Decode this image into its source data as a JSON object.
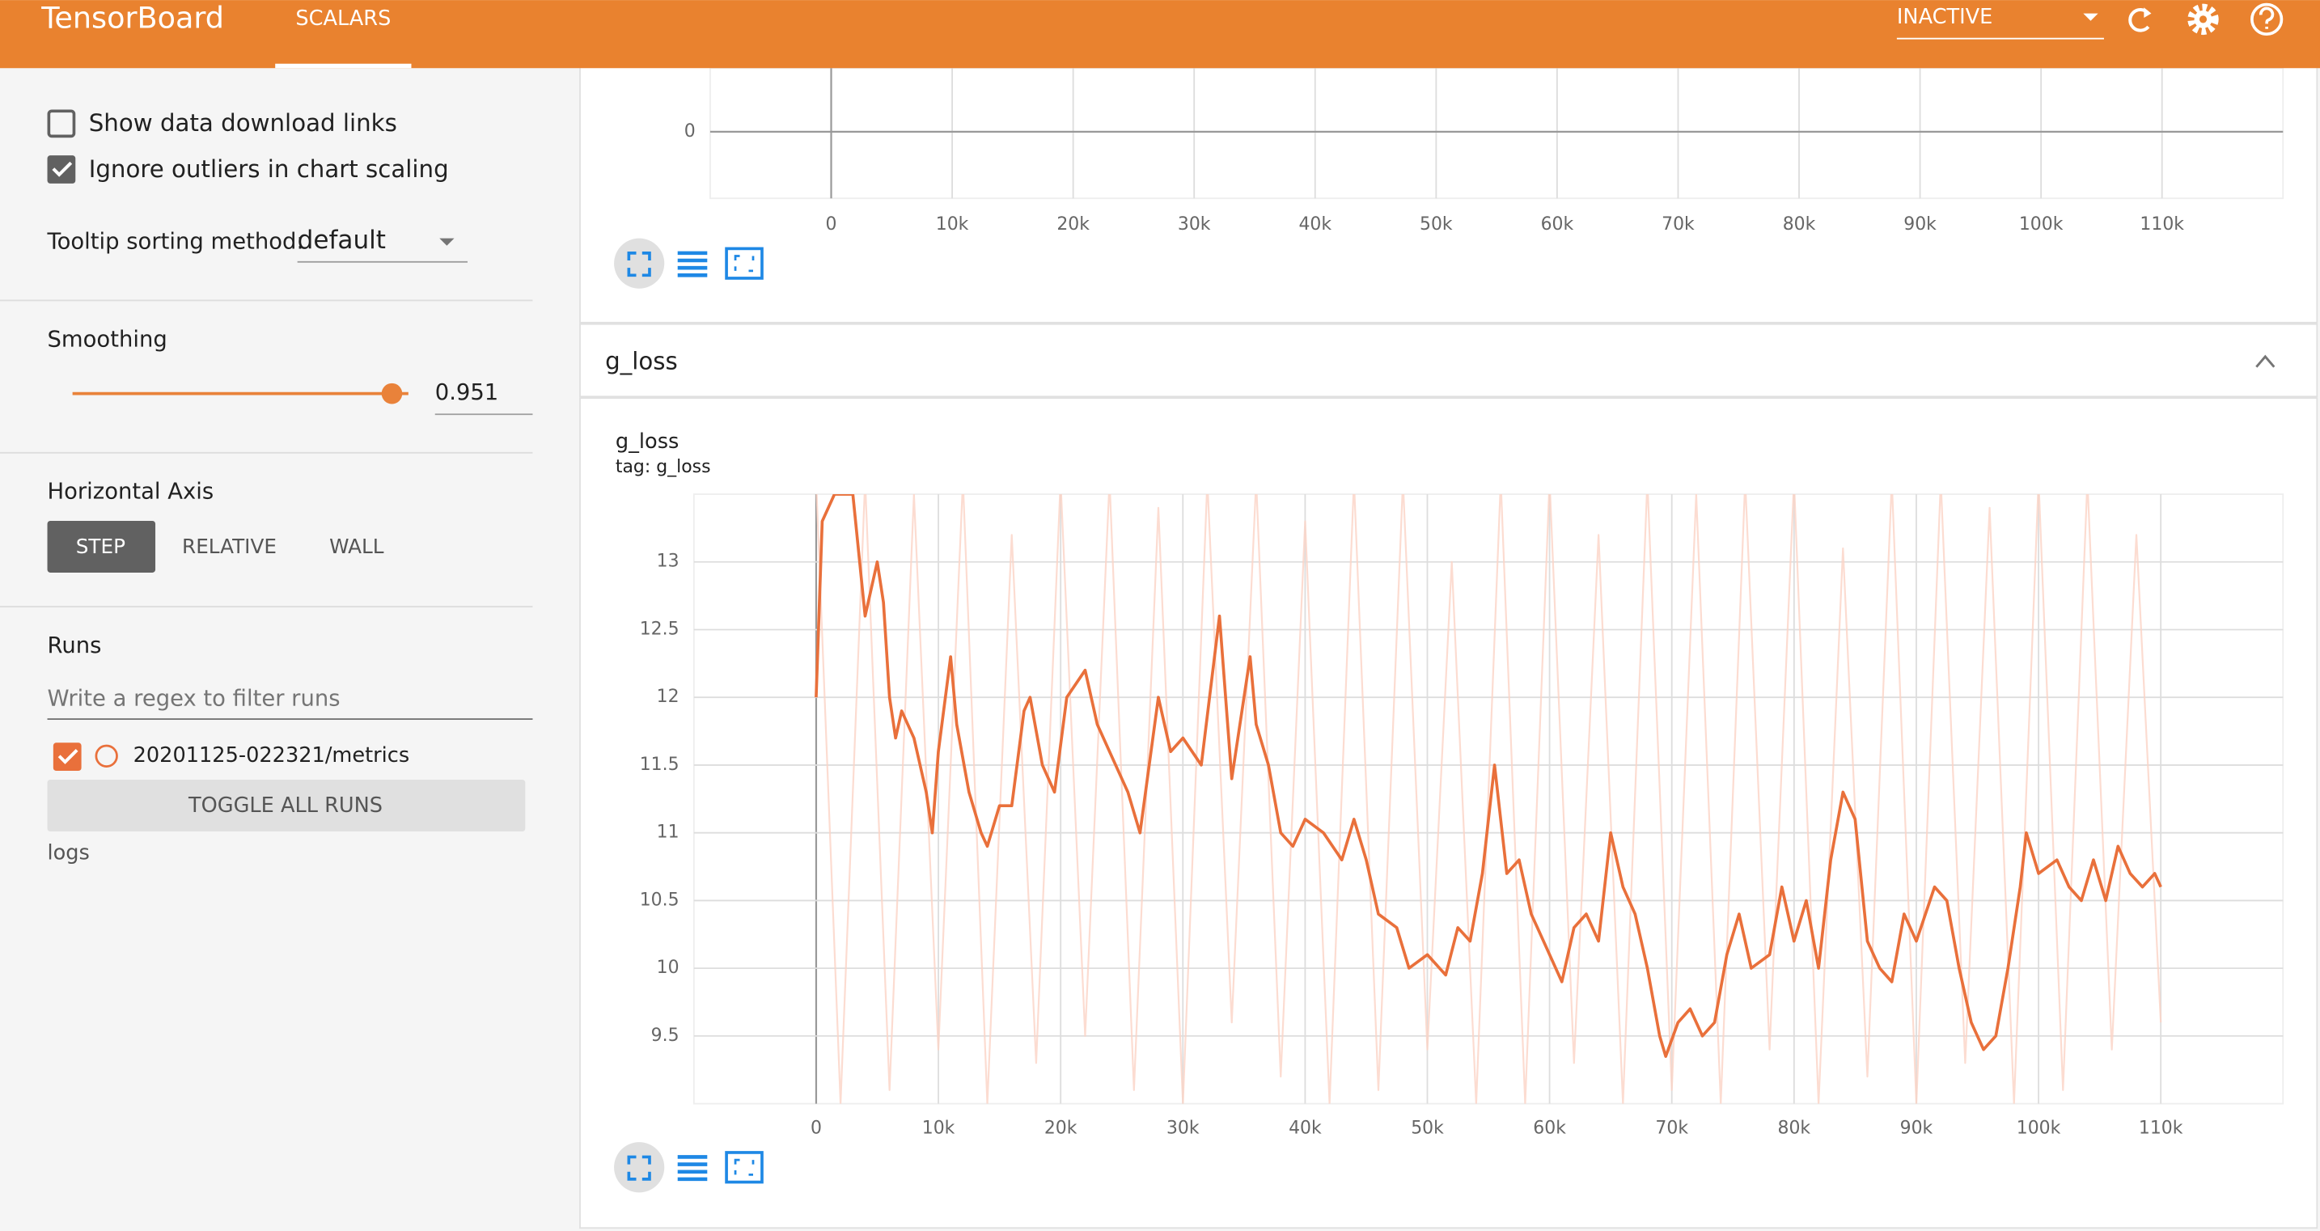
{
  "header": {
    "title": "TensorBoard",
    "tab": "SCALARS",
    "status": "INACTIVE"
  },
  "sidebar": {
    "show_download": "Show data download links",
    "ignore_outliers": "Ignore outliers in chart scaling",
    "tooltip_label": "Tooltip sorting method:",
    "tooltip_value": "default",
    "smoothing_label": "Smoothing",
    "smoothing_value": 0.951,
    "axis_label": "Horizontal Axis",
    "axis_options": [
      "STEP",
      "RELATIVE",
      "WALL"
    ],
    "runs_label": "Runs",
    "filter_placeholder": "Write a regex to filter runs",
    "run": "20201125-022321/metrics",
    "toggle": "TOGGLE ALL RUNS",
    "logdir": "logs"
  },
  "section": "g_loss",
  "chart_data": [
    {
      "type": "line",
      "xlim": [
        -10000,
        120000
      ],
      "xticks": [
        0,
        {
          "value": 10000,
          "label": "10k"
        },
        {
          "value": 20000,
          "label": "20k"
        },
        {
          "value": 30000,
          "label": "30k"
        },
        {
          "value": 40000,
          "label": "40k"
        },
        {
          "value": 50000,
          "label": "50k"
        },
        {
          "value": 60000,
          "label": "60k"
        },
        {
          "value": 70000,
          "label": "70k"
        },
        {
          "value": 80000,
          "label": "80k"
        },
        {
          "value": 90000,
          "label": "90k"
        },
        {
          "value": 100000,
          "label": "100k"
        },
        {
          "value": 110000,
          "label": "110k"
        }
      ],
      "ylim": [
        -0.05,
        0.1
      ],
      "yticks": [
        0
      ],
      "grid": true
    },
    {
      "type": "line",
      "title": "g_loss",
      "subtitle": "tag: g_loss",
      "xlim": [
        -10000,
        120000
      ],
      "xticks": [
        0,
        {
          "value": 10000,
          "label": "10k"
        },
        {
          "value": 20000,
          "label": "20k"
        },
        {
          "value": 30000,
          "label": "30k"
        },
        {
          "value": 40000,
          "label": "40k"
        },
        {
          "value": 50000,
          "label": "50k"
        },
        {
          "value": 60000,
          "label": "60k"
        },
        {
          "value": 70000,
          "label": "70k"
        },
        {
          "value": 80000,
          "label": "80k"
        },
        {
          "value": 90000,
          "label": "90k"
        },
        {
          "value": 100000,
          "label": "100k"
        },
        {
          "value": 110000,
          "label": "110k"
        }
      ],
      "ylim": [
        9.0,
        13.5
      ],
      "yticks": [
        9.5,
        10,
        10.5,
        11,
        11.5,
        12,
        12.5,
        13
      ],
      "grid": true,
      "series": [
        {
          "color": "#fbd3c6",
          "x": [
            0,
            2000,
            4000,
            6000,
            8000,
            10000,
            12000,
            14000,
            16000,
            18000,
            20000,
            22000,
            24000,
            26000,
            28000,
            30000,
            32000,
            34000,
            36000,
            38000,
            40000,
            42000,
            44000,
            46000,
            48000,
            50000,
            52000,
            54000,
            56000,
            58000,
            60000,
            62000,
            64000,
            66000,
            68000,
            70000,
            72000,
            74000,
            76000,
            78000,
            80000,
            82000,
            84000,
            86000,
            88000,
            90000,
            92000,
            94000,
            96000,
            98000,
            100000,
            102000,
            104000,
            106000,
            108000,
            110000
          ],
          "values": [
            13.6,
            9.0,
            13.6,
            9.1,
            13.5,
            9.4,
            13.6,
            9.0,
            13.2,
            9.3,
            13.6,
            9.5,
            13.6,
            9.1,
            13.4,
            9.0,
            13.6,
            9.6,
            13.6,
            9.2,
            13.3,
            9.0,
            13.6,
            9.1,
            13.6,
            9.4,
            13.0,
            9.0,
            13.6,
            9.0,
            13.6,
            9.3,
            13.2,
            9.0,
            13.6,
            9.1,
            13.5,
            9.0,
            13.6,
            9.4,
            13.6,
            9.0,
            13.1,
            9.2,
            13.6,
            9.0,
            13.6,
            9.3,
            13.4,
            9.0,
            13.6,
            9.1,
            13.6,
            9.4,
            13.2,
            9.6
          ]
        },
        {
          "color": "#e9703b",
          "x": [
            0,
            500,
            1500,
            3000,
            4000,
            5000,
            5500,
            6000,
            6500,
            7000,
            8000,
            9000,
            9500,
            10000,
            11000,
            11500,
            12500,
            13500,
            14000,
            15000,
            16000,
            17000,
            17500,
            18500,
            19500,
            20500,
            22000,
            23000,
            24000,
            25500,
            26500,
            28000,
            29000,
            30000,
            31500,
            33000,
            34000,
            35500,
            36000,
            37000,
            38000,
            39000,
            40000,
            41500,
            43000,
            44000,
            45000,
            46000,
            47500,
            48500,
            50000,
            51500,
            52500,
            53500,
            54500,
            55500,
            56500,
            57500,
            58500,
            59500,
            61000,
            62000,
            63000,
            64000,
            65000,
            66000,
            67000,
            68000,
            69000,
            69500,
            70500,
            71500,
            72500,
            73500,
            74500,
            75500,
            76500,
            78000,
            79000,
            80000,
            81000,
            82000,
            83000,
            84000,
            85000,
            86000,
            87000,
            88000,
            89000,
            90000,
            91500,
            92500,
            93500,
            94500,
            95500,
            96500,
            97500,
            98500,
            99000,
            100000,
            101500,
            102500,
            103500,
            104500,
            105500,
            106500,
            107500,
            108500,
            109500,
            110000
          ],
          "values": [
            12.0,
            13.3,
            13.5,
            13.5,
            12.6,
            13.0,
            12.7,
            12.0,
            11.7,
            11.9,
            11.7,
            11.3,
            11.0,
            11.6,
            12.3,
            11.8,
            11.3,
            11.0,
            10.9,
            11.2,
            11.2,
            11.9,
            12.0,
            11.5,
            11.3,
            12.0,
            12.2,
            11.8,
            11.6,
            11.3,
            11.0,
            12.0,
            11.6,
            11.7,
            11.5,
            12.6,
            11.4,
            12.3,
            11.8,
            11.5,
            11.0,
            10.9,
            11.1,
            11.0,
            10.8,
            11.1,
            10.8,
            10.4,
            10.3,
            10.0,
            10.1,
            9.95,
            10.3,
            10.2,
            10.7,
            11.5,
            10.7,
            10.8,
            10.4,
            10.2,
            9.9,
            10.3,
            10.4,
            10.2,
            11.0,
            10.6,
            10.4,
            10.0,
            9.5,
            9.35,
            9.6,
            9.7,
            9.5,
            9.6,
            10.1,
            10.4,
            10.0,
            10.1,
            10.6,
            10.2,
            10.5,
            10.0,
            10.8,
            11.3,
            11.1,
            10.2,
            10.0,
            9.9,
            10.4,
            10.2,
            10.6,
            10.5,
            10.0,
            9.6,
            9.4,
            9.5,
            10.0,
            10.6,
            11.0,
            10.7,
            10.8,
            10.6,
            10.5,
            10.8,
            10.5,
            10.9,
            10.7,
            10.6,
            10.7,
            10.6
          ]
        }
      ]
    }
  ]
}
